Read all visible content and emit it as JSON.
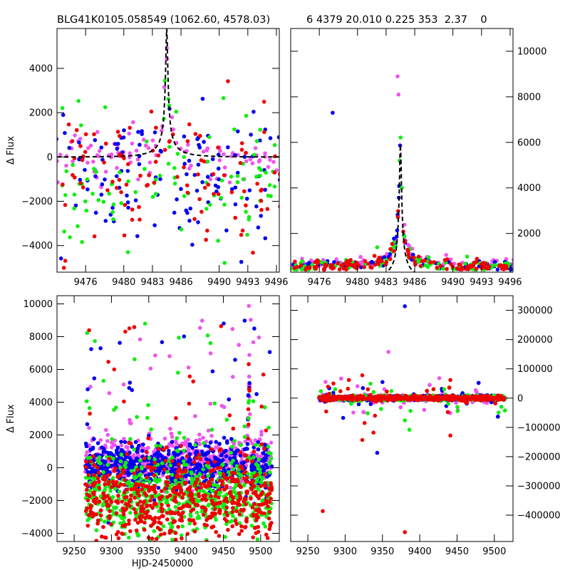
{
  "header": {
    "left_title": "BLG41K0105.058549 (1062.60, 4578.03)",
    "right_title": "6 4379 20.010 0.225 353  2.37    0"
  },
  "colors": {
    "magenta": "#ee55ee",
    "blue": "#0000ee",
    "green": "#11ee11",
    "red": "#ee0000",
    "model": "#000000"
  },
  "chart_data": [
    {
      "type": "scatter",
      "id": "top-left",
      "description": "zoom on peak with PSPL model",
      "xlim": [
        9473,
        9496.3
      ],
      "ylim": [
        -5200,
        5800
      ],
      "xticks": [
        9476,
        9480,
        9483,
        9486,
        9490,
        9493,
        9496
      ],
      "yticks": [
        -4000,
        -2000,
        0,
        2000,
        4000
      ],
      "ylabel": "Δ Flux",
      "xlabel": "",
      "tick_side": "left",
      "model": {
        "t0": 9484.5,
        "u0": 0.03,
        "tE": 1.3,
        "A": 0.058,
        "base": 0,
        "peak": 5800
      },
      "scatter_peak": 5000,
      "scatter_base": -800,
      "scatter_spread": 1500
    },
    {
      "type": "scatter",
      "id": "top-right",
      "description": "zoom on peak, positive range",
      "xlim": [
        9473,
        9496.3
      ],
      "ylim": [
        300,
        11000
      ],
      "xticks": [
        9476,
        9480,
        9483,
        9486,
        9490,
        9493,
        9496
      ],
      "yticks": [
        2000,
        4000,
        6000,
        8000,
        10000
      ],
      "ylabel": "",
      "xlabel": "",
      "tick_side": "right",
      "model": {
        "t0": 9484.5,
        "u0": 0.03,
        "tE": 1.3,
        "A": 0.058,
        "base": 0,
        "peak": 5900
      },
      "scatter_peak": 5000,
      "scatter_base": 400,
      "scatter_spread": 500
    },
    {
      "type": "scatter",
      "id": "bottom-left",
      "description": "full light curve",
      "xlim": [
        9227,
        9525
      ],
      "ylim": [
        -4500,
        10500
      ],
      "xticks": [
        9250,
        9300,
        9350,
        9400,
        9450,
        9500
      ],
      "yticks": [
        -4000,
        -2000,
        0,
        2000,
        4000,
        6000,
        8000,
        10000
      ],
      "ylabel": "Δ Flux",
      "xlabel": "HJD-2450000",
      "tick_side": "left",
      "event_t0": 9484.5,
      "event_peak": 5900
    },
    {
      "type": "scatter",
      "id": "bottom-right",
      "description": "full light curve, full flux range",
      "xlim": [
        9227,
        9525
      ],
      "ylim": [
        -490000,
        350000
      ],
      "xticks": [
        9250,
        9300,
        9350,
        9400,
        9450,
        9500
      ],
      "yticks": [
        -400000,
        -300000,
        -200000,
        -100000,
        0,
        100000,
        200000,
        300000
      ],
      "ylabel": "",
      "xlabel": "",
      "tick_side": "right",
      "outliers": [
        {
          "x": 9270,
          "y": -386000,
          "c": "red"
        },
        {
          "x": 9380,
          "y": -458000,
          "c": "red"
        },
        {
          "x": 9380,
          "y": 314000,
          "c": "blue"
        },
        {
          "x": 9358,
          "y": 158000,
          "c": "magenta"
        },
        {
          "x": 9343,
          "y": -187000,
          "c": "blue"
        },
        {
          "x": 9441,
          "y": -128000,
          "c": "red"
        },
        {
          "x": 9323,
          "y": -143000,
          "c": "red"
        },
        {
          "x": 9338,
          "y": -118000,
          "c": "red"
        },
        {
          "x": 9326,
          "y": -85000,
          "c": "red"
        },
        {
          "x": 9386,
          "y": -108000,
          "c": "green"
        },
        {
          "x": 9340,
          "y": -60000,
          "c": "red"
        },
        {
          "x": 9305,
          "y": 62000,
          "c": "red"
        },
        {
          "x": 9323,
          "y": 78000,
          "c": "red"
        },
        {
          "x": 9441,
          "y": 62000,
          "c": "red"
        },
        {
          "x": 9350,
          "y": 55000,
          "c": "blue"
        },
        {
          "x": 9406,
          "y": -40000,
          "c": "magenta"
        },
        {
          "x": 9380,
          "y": -76000,
          "c": "green"
        }
      ]
    }
  ]
}
